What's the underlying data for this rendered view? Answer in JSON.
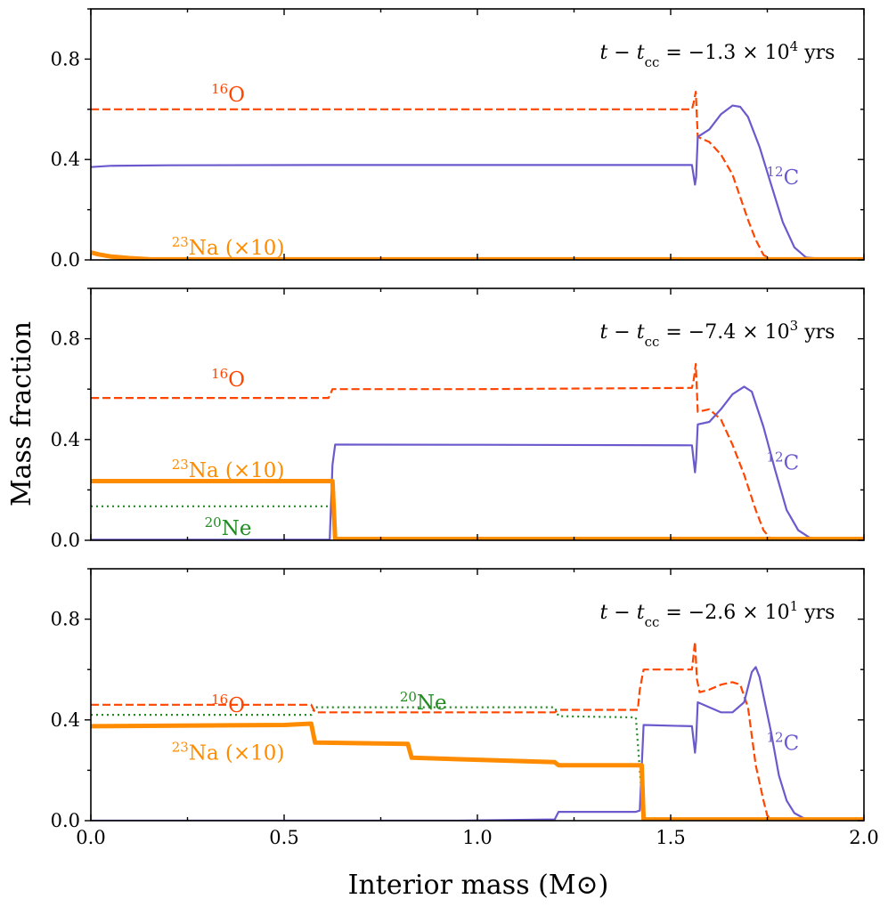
{
  "chart_data": {
    "type": "line",
    "x_label": "Interior mass (M⊙)",
    "y_label": "Mass fraction",
    "xlim": [
      0.0,
      2.0
    ],
    "ylim": [
      0.0,
      1.0
    ],
    "x_ticks": [
      "0.0",
      "0.5",
      "1.0",
      "1.5",
      "2.0"
    ],
    "y_ticks": [
      "0.0",
      "0.4",
      "0.8"
    ],
    "series_style": {
      "C12": {
        "color": "#6a5acd",
        "dash": "solid",
        "width": 2.2
      },
      "O16": {
        "color": "#ff4500",
        "dash": "dashed",
        "width": 2.2
      },
      "Na23": {
        "color": "#ff8c00",
        "dash": "solid",
        "width": 5
      },
      "Ne20": {
        "color": "#228b22",
        "dash": "dotted",
        "width": 2.2
      }
    },
    "panels": [
      {
        "id": "top",
        "time_label": "t − t_cc = −1.3 × 10^4 yrs",
        "labels": {
          "O16": "¹⁶O",
          "C12": "¹²C",
          "Na23": "²³Na (×10)"
        },
        "series": {
          "C12": [
            [
              0,
              0.37
            ],
            [
              0.05,
              0.375
            ],
            [
              0.2,
              0.377
            ],
            [
              0.6,
              0.378
            ],
            [
              1.0,
              0.378
            ],
            [
              1.555,
              0.378
            ],
            [
              1.563,
              0.3
            ],
            [
              1.566,
              0.33
            ],
            [
              1.57,
              0.49
            ],
            [
              1.6,
              0.52
            ],
            [
              1.63,
              0.58
            ],
            [
              1.66,
              0.615
            ],
            [
              1.68,
              0.61
            ],
            [
              1.7,
              0.57
            ],
            [
              1.73,
              0.45
            ],
            [
              1.76,
              0.3
            ],
            [
              1.79,
              0.15
            ],
            [
              1.82,
              0.05
            ],
            [
              1.85,
              0.01
            ],
            [
              1.9,
              0.003
            ],
            [
              2.0,
              0.003
            ]
          ],
          "O16": [
            [
              0,
              0.6
            ],
            [
              1.555,
              0.6
            ],
            [
              1.56,
              0.63
            ],
            [
              1.565,
              0.67
            ],
            [
              1.57,
              0.49
            ],
            [
              1.6,
              0.47
            ],
            [
              1.63,
              0.42
            ],
            [
              1.66,
              0.34
            ],
            [
              1.68,
              0.25
            ],
            [
              1.7,
              0.16
            ],
            [
              1.72,
              0.08
            ],
            [
              1.74,
              0.02
            ],
            [
              1.76,
              0.003
            ],
            [
              2.0,
              0.003
            ]
          ],
          "Na23": [
            [
              0,
              0.03
            ],
            [
              0.02,
              0.022
            ],
            [
              0.05,
              0.014
            ],
            [
              0.1,
              0.007
            ],
            [
              0.15,
              0.003
            ],
            [
              0.2,
              0.002
            ],
            [
              2.0,
              0.002
            ]
          ]
        }
      },
      {
        "id": "middle",
        "time_label": "t − t_cc = −7.4 × 10^3 yrs",
        "labels": {
          "O16": "¹⁶O",
          "C12": "¹²C",
          "Na23": "²³Na (×10)",
          "Ne20": "²⁰Ne"
        },
        "series": {
          "C12": [
            [
              0,
              0.002
            ],
            [
              0.618,
              0.002
            ],
            [
              0.625,
              0.3
            ],
            [
              0.632,
              0.38
            ],
            [
              1.0,
              0.379
            ],
            [
              1.555,
              0.377
            ],
            [
              1.563,
              0.27
            ],
            [
              1.566,
              0.32
            ],
            [
              1.57,
              0.46
            ],
            [
              1.6,
              0.47
            ],
            [
              1.63,
              0.52
            ],
            [
              1.66,
              0.58
            ],
            [
              1.69,
              0.61
            ],
            [
              1.71,
              0.59
            ],
            [
              1.74,
              0.45
            ],
            [
              1.77,
              0.28
            ],
            [
              1.8,
              0.12
            ],
            [
              1.83,
              0.04
            ],
            [
              1.86,
              0.01
            ],
            [
              1.9,
              0.003
            ],
            [
              2.0,
              0.003
            ]
          ],
          "O16": [
            [
              0,
              0.565
            ],
            [
              0.615,
              0.565
            ],
            [
              0.625,
              0.6
            ],
            [
              1.0,
              0.6
            ],
            [
              1.555,
              0.605
            ],
            [
              1.56,
              0.64
            ],
            [
              1.565,
              0.7
            ],
            [
              1.57,
              0.51
            ],
            [
              1.6,
              0.52
            ],
            [
              1.63,
              0.48
            ],
            [
              1.66,
              0.38
            ],
            [
              1.69,
              0.26
            ],
            [
              1.72,
              0.12
            ],
            [
              1.74,
              0.04
            ],
            [
              1.76,
              0.003
            ],
            [
              2.0,
              0.003
            ]
          ],
          "Na23": [
            [
              0,
              0.235
            ],
            [
              0.625,
              0.235
            ],
            [
              0.632,
              0.005
            ],
            [
              2.0,
              0.005
            ]
          ],
          "Ne20": [
            [
              0,
              0.135
            ],
            [
              0.625,
              0.135
            ],
            [
              0.632,
              0.003
            ],
            [
              2.0,
              0.003
            ]
          ]
        }
      },
      {
        "id": "bottom",
        "time_label": "t − t_cc = −2.6 × 10^1 yrs",
        "labels": {
          "O16": "¹⁶O",
          "C12": "¹²C",
          "Na23": "²³Na (×10)",
          "Ne20": "²⁰Ne"
        },
        "series": {
          "C12": [
            [
              0,
              0.0
            ],
            [
              0.95,
              0.0
            ],
            [
              1.2,
              0.005
            ],
            [
              1.21,
              0.035
            ],
            [
              1.41,
              0.035
            ],
            [
              1.42,
              0.04
            ],
            [
              1.43,
              0.38
            ],
            [
              1.555,
              0.375
            ],
            [
              1.563,
              0.27
            ],
            [
              1.566,
              0.32
            ],
            [
              1.57,
              0.47
            ],
            [
              1.6,
              0.45
            ],
            [
              1.63,
              0.43
            ],
            [
              1.66,
              0.43
            ],
            [
              1.69,
              0.47
            ],
            [
              1.71,
              0.59
            ],
            [
              1.72,
              0.61
            ],
            [
              1.73,
              0.57
            ],
            [
              1.76,
              0.35
            ],
            [
              1.78,
              0.18
            ],
            [
              1.8,
              0.08
            ],
            [
              1.82,
              0.03
            ],
            [
              1.85,
              0.005
            ],
            [
              2.0,
              0.003
            ]
          ],
          "O16": [
            [
              0,
              0.46
            ],
            [
              0.57,
              0.46
            ],
            [
              0.58,
              0.43
            ],
            [
              1.2,
              0.43
            ],
            [
              1.21,
              0.44
            ],
            [
              1.415,
              0.44
            ],
            [
              1.42,
              0.52
            ],
            [
              1.43,
              0.6
            ],
            [
              1.555,
              0.6
            ],
            [
              1.563,
              0.71
            ],
            [
              1.568,
              0.56
            ],
            [
              1.575,
              0.51
            ],
            [
              1.6,
              0.52
            ],
            [
              1.63,
              0.54
            ],
            [
              1.66,
              0.55
            ],
            [
              1.68,
              0.54
            ],
            [
              1.7,
              0.45
            ],
            [
              1.72,
              0.22
            ],
            [
              1.74,
              0.08
            ],
            [
              1.75,
              0.02
            ],
            [
              1.76,
              0.003
            ],
            [
              2.0,
              0.003
            ]
          ],
          "Na23": [
            [
              0,
              0.375
            ],
            [
              0.5,
              0.38
            ],
            [
              0.57,
              0.385
            ],
            [
              0.58,
              0.31
            ],
            [
              0.82,
              0.305
            ],
            [
              0.83,
              0.25
            ],
            [
              1.2,
              0.232
            ],
            [
              1.21,
              0.22
            ],
            [
              1.425,
              0.22
            ],
            [
              1.43,
              0.005
            ],
            [
              2.0,
              0.005
            ]
          ],
          "Ne20": [
            [
              0,
              0.42
            ],
            [
              0.57,
              0.42
            ],
            [
              0.58,
              0.45
            ],
            [
              1.2,
              0.45
            ],
            [
              1.21,
              0.415
            ],
            [
              1.41,
              0.41
            ],
            [
              1.43,
              0.003
            ],
            [
              1.62,
              0.004
            ],
            [
              1.64,
              0.01
            ],
            [
              1.66,
              0.004
            ],
            [
              2.0,
              0.003
            ]
          ]
        }
      }
    ]
  }
}
